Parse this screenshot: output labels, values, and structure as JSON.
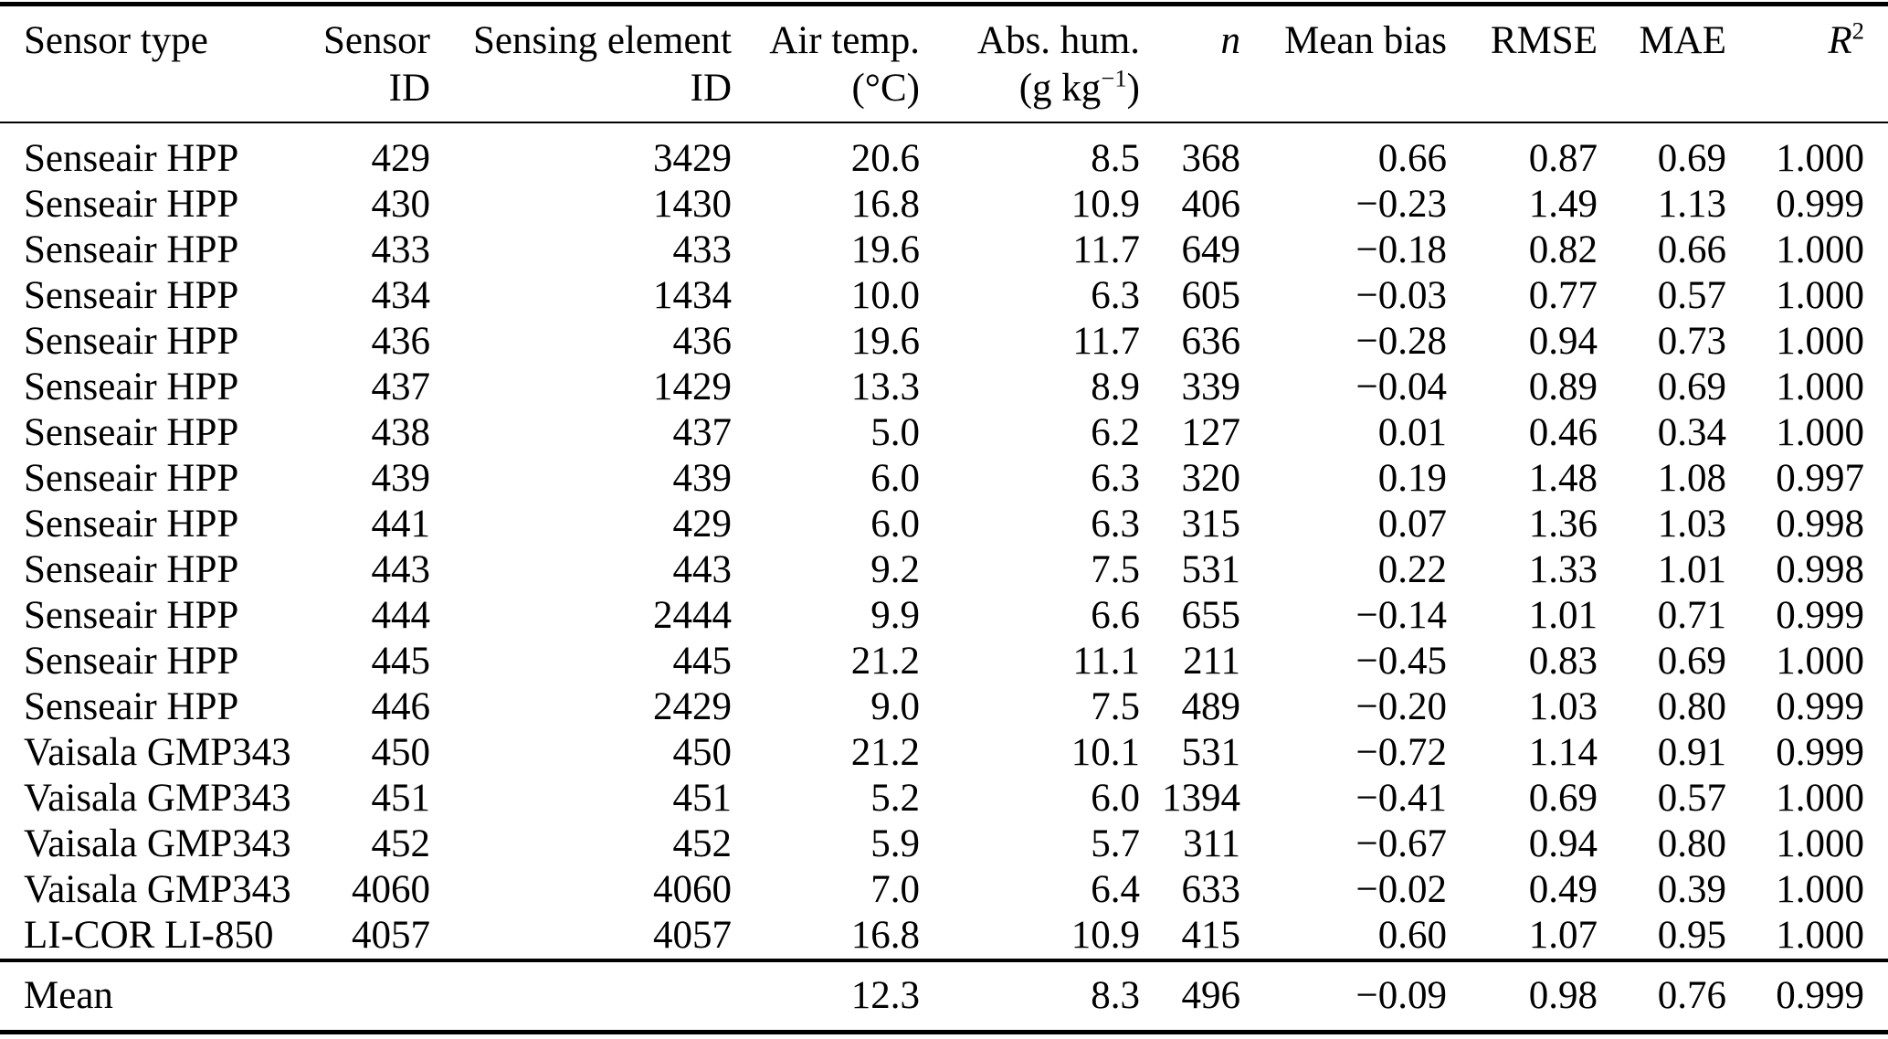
{
  "table": {
    "column_keys": [
      "sensor_type",
      "sensor_id",
      "sensing_element_id",
      "air_temp",
      "abs_hum",
      "n",
      "mean_bias",
      "rmse",
      "mae",
      "r2"
    ],
    "columns": [
      {
        "line1": "Sensor type",
        "line2": ""
      },
      {
        "line1": "Sensor",
        "line2": "ID"
      },
      {
        "line1": "Sensing element",
        "line2": "ID"
      },
      {
        "line1": "Air temp.",
        "line2": "(°C)"
      },
      {
        "line1": "Abs. hum.",
        "line2_pre": "(g kg",
        "line2_sup": "−1",
        "line2_post": ")"
      },
      {
        "line1": "n",
        "italic": true
      },
      {
        "line1": "Mean bias"
      },
      {
        "line1": "RMSE"
      },
      {
        "line1": "MAE"
      },
      {
        "line1": "R",
        "sup": "2",
        "italic": true
      }
    ],
    "rows": [
      [
        "Senseair HPP",
        "429",
        "3429",
        "20.6",
        "8.5",
        "368",
        "0.66",
        "0.87",
        "0.69",
        "1.000"
      ],
      [
        "Senseair HPP",
        "430",
        "1430",
        "16.8",
        "10.9",
        "406",
        "−0.23",
        "1.49",
        "1.13",
        "0.999"
      ],
      [
        "Senseair HPP",
        "433",
        "433",
        "19.6",
        "11.7",
        "649",
        "−0.18",
        "0.82",
        "0.66",
        "1.000"
      ],
      [
        "Senseair HPP",
        "434",
        "1434",
        "10.0",
        "6.3",
        "605",
        "−0.03",
        "0.77",
        "0.57",
        "1.000"
      ],
      [
        "Senseair HPP",
        "436",
        "436",
        "19.6",
        "11.7",
        "636",
        "−0.28",
        "0.94",
        "0.73",
        "1.000"
      ],
      [
        "Senseair HPP",
        "437",
        "1429",
        "13.3",
        "8.9",
        "339",
        "−0.04",
        "0.89",
        "0.69",
        "1.000"
      ],
      [
        "Senseair HPP",
        "438",
        "437",
        "5.0",
        "6.2",
        "127",
        "0.01",
        "0.46",
        "0.34",
        "1.000"
      ],
      [
        "Senseair HPP",
        "439",
        "439",
        "6.0",
        "6.3",
        "320",
        "0.19",
        "1.48",
        "1.08",
        "0.997"
      ],
      [
        "Senseair HPP",
        "441",
        "429",
        "6.0",
        "6.3",
        "315",
        "0.07",
        "1.36",
        "1.03",
        "0.998"
      ],
      [
        "Senseair HPP",
        "443",
        "443",
        "9.2",
        "7.5",
        "531",
        "0.22",
        "1.33",
        "1.01",
        "0.998"
      ],
      [
        "Senseair HPP",
        "444",
        "2444",
        "9.9",
        "6.6",
        "655",
        "−0.14",
        "1.01",
        "0.71",
        "0.999"
      ],
      [
        "Senseair HPP",
        "445",
        "445",
        "21.2",
        "11.1",
        "211",
        "−0.45",
        "0.83",
        "0.69",
        "1.000"
      ],
      [
        "Senseair HPP",
        "446",
        "2429",
        "9.0",
        "7.5",
        "489",
        "−0.20",
        "1.03",
        "0.80",
        "0.999"
      ],
      [
        "Vaisala GMP343",
        "450",
        "450",
        "21.2",
        "10.1",
        "531",
        "−0.72",
        "1.14",
        "0.91",
        "0.999"
      ],
      [
        "Vaisala GMP343",
        "451",
        "451",
        "5.2",
        "6.0",
        "1394",
        "−0.41",
        "0.69",
        "0.57",
        "1.000"
      ],
      [
        "Vaisala GMP343",
        "452",
        "452",
        "5.9",
        "5.7",
        "311",
        "−0.67",
        "0.94",
        "0.80",
        "1.000"
      ],
      [
        "Vaisala GMP343",
        "4060",
        "4060",
        "7.0",
        "6.4",
        "633",
        "−0.02",
        "0.49",
        "0.39",
        "1.000"
      ],
      [
        "LI-COR LI-850",
        "4057",
        "4057",
        "16.8",
        "10.9",
        "415",
        "0.60",
        "1.07",
        "0.95",
        "1.000"
      ]
    ],
    "mean_row": [
      "Mean",
      "",
      "",
      "12.3",
      "8.3",
      "496",
      "−0.09",
      "0.98",
      "0.76",
      "0.999"
    ]
  },
  "colors": {
    "background": "#ffffff",
    "text": "#000000",
    "rule": "#000000"
  }
}
